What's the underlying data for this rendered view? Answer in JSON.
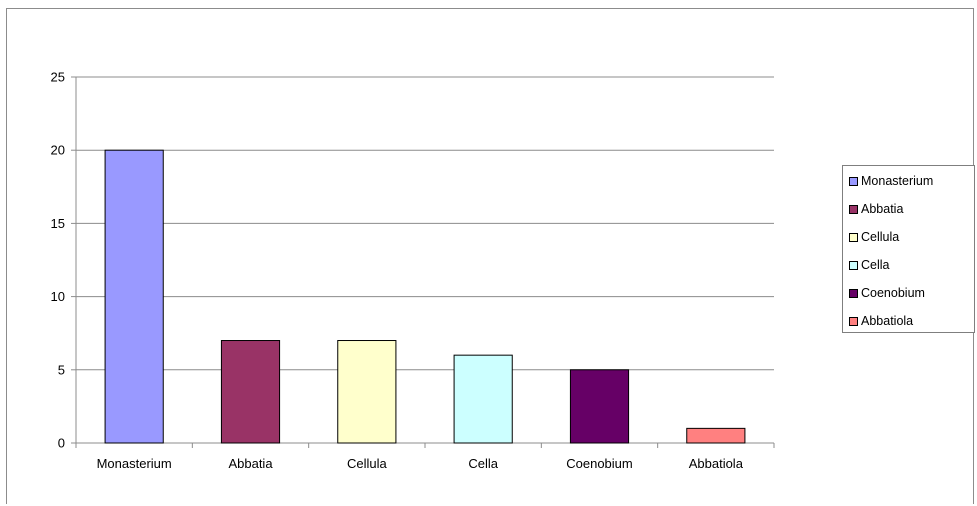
{
  "chart_data": {
    "type": "bar",
    "categories": [
      "Monasterium",
      "Abbatia",
      "Cellula",
      "Cella",
      "Coenobium",
      "Abbatiola"
    ],
    "values": [
      20,
      7,
      7,
      6,
      5,
      1
    ],
    "colors": [
      "#9999ff",
      "#993366",
      "#ffffcc",
      "#ccffff",
      "#660066",
      "#ff8080"
    ],
    "ylim": [
      0,
      25
    ],
    "yticks": [
      0,
      5,
      10,
      15,
      20,
      25
    ],
    "grid": true,
    "legend_position": "right",
    "title": "",
    "xlabel": "",
    "ylabel": ""
  },
  "legend": {
    "items": [
      {
        "label": "Monasterium",
        "color": "#9999ff"
      },
      {
        "label": "Abbatia",
        "color": "#993366"
      },
      {
        "label": "Cellula",
        "color": "#ffffcc"
      },
      {
        "label": "Cella",
        "color": "#ccffff"
      },
      {
        "label": "Coenobium",
        "color": "#660066"
      },
      {
        "label": "Abbatiola",
        "color": "#ff8080"
      }
    ]
  }
}
